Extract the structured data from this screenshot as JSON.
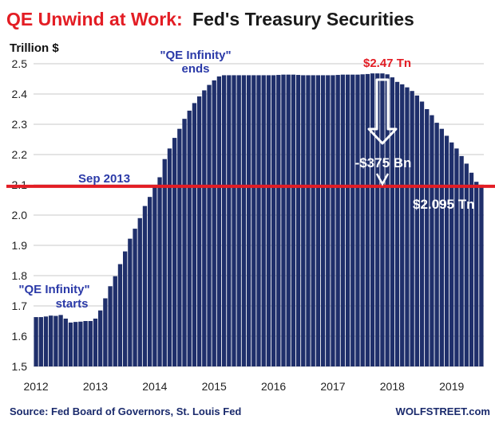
{
  "colors": {
    "bar": "#1f2f6b",
    "title_red": "#e31d24",
    "title_dark": "#1a1a1a",
    "ref_line": "#e31d24",
    "annotation_blue": "#2b3aa8",
    "annotation_red": "#e31d24",
    "grid": "#c8c8c8"
  },
  "title": {
    "part1": "QE Unwind at Work:",
    "part2": "Fed's Treasury Securities"
  },
  "footer": {
    "source": "Source: Fed Board of Governors, St. Louis Fed",
    "brand": "WOLFSTREET.com"
  },
  "chart_data": {
    "type": "bar",
    "ylabel": "Trillion $",
    "ylim": [
      1.5,
      2.5
    ],
    "yticks": [
      1.5,
      1.6,
      1.7,
      1.8,
      1.9,
      2.0,
      2.1,
      2.2,
      2.3,
      2.4,
      2.5
    ],
    "ytick_labels": [
      "1.5",
      "1.6",
      "1.7",
      "1.8",
      "1.9",
      "2.0",
      "2.1",
      "2.2",
      "2.3",
      "2.4",
      "2.5"
    ],
    "grid": true,
    "xlabels": [
      "2012",
      "2013",
      "2014",
      "2015",
      "2016",
      "2017",
      "2018",
      "2019"
    ],
    "reference_line": {
      "value": 2.095,
      "label": "Sep 2013"
    },
    "annotations": {
      "qe_start": [
        "\"QE Infinity\"",
        "starts"
      ],
      "qe_end": [
        "\"QE Infinity\"",
        "ends"
      ],
      "peak": "$2.47 Tn",
      "drop": "-$375 Bn",
      "current": "$2.095 Tn"
    },
    "series": [
      {
        "values": [
          1.663,
          1.663,
          1.665,
          1.668,
          1.667,
          1.67,
          1.658,
          1.645,
          1.647,
          1.648,
          1.65,
          1.65,
          1.658,
          1.685,
          1.725,
          1.765,
          1.798,
          1.838,
          1.88,
          1.922,
          1.955,
          1.99,
          2.03,
          2.06,
          2.095,
          2.125,
          2.185,
          2.22,
          2.255,
          2.285,
          2.318,
          2.345,
          2.37,
          2.392,
          2.412,
          2.43,
          2.445,
          2.458,
          2.462,
          2.462,
          2.462,
          2.462,
          2.462,
          2.462,
          2.462,
          2.462,
          2.462,
          2.462,
          2.462,
          2.463,
          2.464,
          2.464,
          2.464,
          2.463,
          2.462,
          2.462,
          2.462,
          2.462,
          2.462,
          2.462,
          2.462,
          2.463,
          2.464,
          2.464,
          2.464,
          2.464,
          2.465,
          2.466,
          2.468,
          2.468,
          2.468,
          2.465,
          2.455,
          2.44,
          2.432,
          2.422,
          2.41,
          2.395,
          2.375,
          2.35,
          2.33,
          2.305,
          2.285,
          2.262,
          2.24,
          2.22,
          2.195,
          2.17,
          2.14,
          2.11,
          2.095
        ]
      }
    ]
  }
}
